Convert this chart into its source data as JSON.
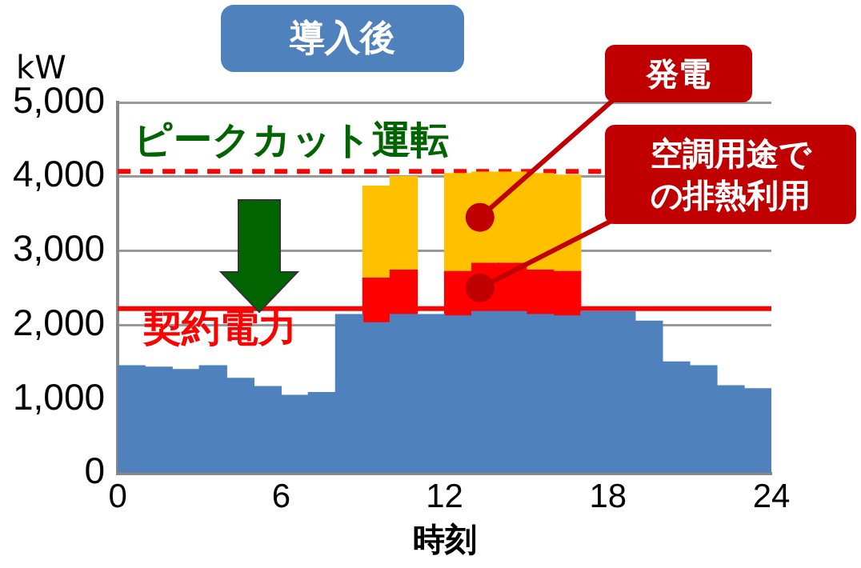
{
  "chart_data": {
    "type": "bar",
    "title": "導入後",
    "ylabel": "kW",
    "xlabel": "時刻",
    "stacked": true,
    "x": [
      0.5,
      1.5,
      2.5,
      3.5,
      4.5,
      5.5,
      6.5,
      7.5,
      8.5,
      9.5,
      10.5,
      11.5,
      12.5,
      13.5,
      14.5,
      15.5,
      16.5,
      17.5,
      18.5,
      19.5,
      20.5,
      21.5,
      22.5,
      23.5
    ],
    "xlim": [
      0,
      24
    ],
    "xticks": [
      0,
      6,
      12,
      18,
      24
    ],
    "ylim": [
      0,
      5000
    ],
    "yticks": [
      0,
      {
        "value": 1000,
        "label": "1,000"
      },
      {
        "value": 2000,
        "label": "2,000"
      },
      {
        "value": 3000,
        "label": "3,000"
      },
      {
        "value": 4000,
        "label": "4,000"
      },
      {
        "value": 5000,
        "label": "5,000"
      }
    ],
    "series": [
      {
        "color": "#4f81bd",
        "values": [
          1450,
          1430,
          1400,
          1450,
          1280,
          1170,
          1050,
          1090,
          2140,
          2030,
          2140,
          2140,
          2120,
          2180,
          2180,
          2140,
          2120,
          2180,
          2180,
          2050,
          1500,
          1450,
          1180,
          1140
        ]
      },
      {
        "color": "#ff0000",
        "values": [
          null,
          null,
          null,
          null,
          null,
          null,
          null,
          null,
          null,
          600,
          600,
          null,
          600,
          650,
          650,
          600,
          600,
          null,
          null,
          null,
          null,
          null,
          null,
          null
        ]
      },
      {
        "color": "#ffc000",
        "values": [
          null,
          null,
          null,
          null,
          null,
          null,
          null,
          null,
          null,
          1240,
          1260,
          null,
          1320,
          1230,
          1230,
          1300,
          1300,
          null,
          null,
          null,
          null,
          null,
          null,
          null
        ]
      }
    ],
    "ref_lines": [
      {
        "axis": "y",
        "value": 4070,
        "label": "ピークカット運転",
        "color": "#ff0000",
        "line_style": "dashed"
      },
      {
        "axis": "y",
        "value": 2220,
        "label": "契約電力",
        "color": "#ff0000",
        "line_style": "solid"
      }
    ],
    "annotations": [
      {
        "text": "発電",
        "x": 13.3,
        "y": 3450
      },
      {
        "text": "空調用途での排熱利用",
        "x": 13.3,
        "y": 2500
      }
    ],
    "grid": "y",
    "legend": false
  }
}
